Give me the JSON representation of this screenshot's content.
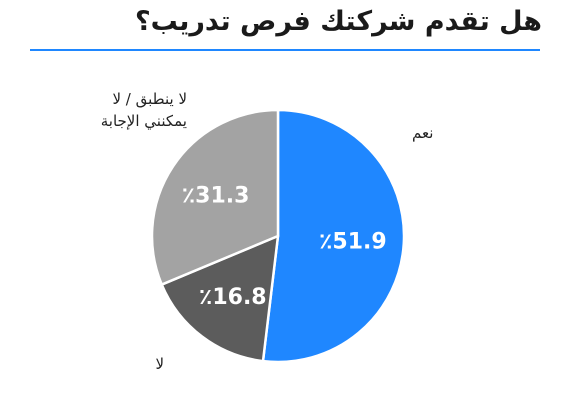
{
  "title": "هل تقدم شركتك فرص تدريب؟",
  "accent_color": "#1f87ff",
  "chart_data": {
    "type": "pie",
    "title": "هل تقدم شركتك فرص تدريب؟",
    "slices": [
      {
        "category": "نعم",
        "value": 51.9,
        "label": "٪51.9",
        "color": "#1f87ff"
      },
      {
        "category": "لا",
        "value": 16.8,
        "label": "٪16.8",
        "color": "#5c5c5c"
      },
      {
        "category_lines": [
          "لا ينطبق / لا",
          "يمكنني الإجابة"
        ],
        "value": 31.3,
        "label": "٪31.3",
        "color": "#a3a3a3"
      }
    ]
  }
}
